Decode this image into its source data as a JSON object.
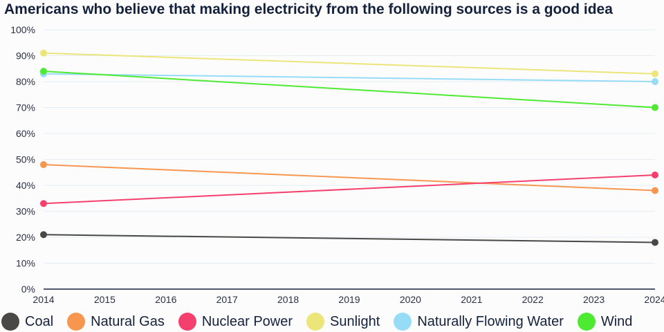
{
  "chart_data": {
    "type": "line",
    "title": "Americans who believe that making electricity from the following sources is a good idea",
    "xlabel": "",
    "ylabel": "",
    "x": [
      2014,
      2024
    ],
    "xticks": [
      "2014",
      "2015",
      "2016",
      "2017",
      "2018",
      "2019",
      "2020",
      "2021",
      "2022",
      "2023",
      "2024"
    ],
    "yticks": [
      "0%",
      "10%",
      "20%",
      "30%",
      "40%",
      "50%",
      "60%",
      "70%",
      "80%",
      "90%",
      "100%"
    ],
    "ylim": [
      0,
      100
    ],
    "xlim": [
      2014,
      2024
    ],
    "grid": true,
    "legend_position": "bottom",
    "series": [
      {
        "name": "Coal",
        "color": "#4a4846",
        "values": [
          21,
          18
        ]
      },
      {
        "name": "Natural Gas",
        "color": "#f7964f",
        "values": [
          48,
          38
        ]
      },
      {
        "name": "Nuclear Power",
        "color": "#f5406e",
        "values": [
          33,
          44
        ]
      },
      {
        "name": "Sunlight",
        "color": "#ece57a",
        "values": [
          91,
          83
        ]
      },
      {
        "name": "Naturally Flowing Water",
        "color": "#97dcf7",
        "values": [
          83,
          80
        ]
      },
      {
        "name": "Wind",
        "color": "#4eea32",
        "values": [
          84,
          70
        ]
      }
    ]
  }
}
